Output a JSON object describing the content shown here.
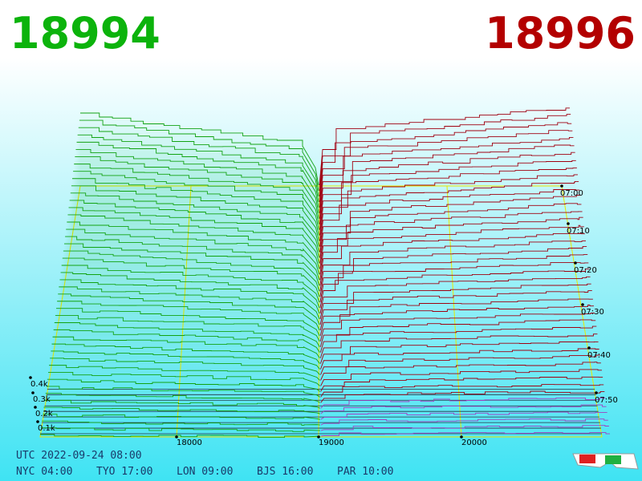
{
  "header": {
    "bid": 18994,
    "ask": 18996
  },
  "axes": {
    "volume_labels": [
      "0.4k",
      "0.3k",
      "0.2k",
      "0.1k"
    ],
    "price_labels": [
      18000,
      19000,
      20000
    ],
    "time_labels": [
      "07:00",
      "07:10",
      "07:20",
      "07:30",
      "07:40",
      "07:50"
    ]
  },
  "footer": {
    "utc": "UTC 2022-09-24 08:00",
    "clocks": [
      "NYC 04:00",
      "TYO 17:00",
      "LON 09:00",
      "BJS 16:00",
      "PAR 10:00"
    ]
  }
}
